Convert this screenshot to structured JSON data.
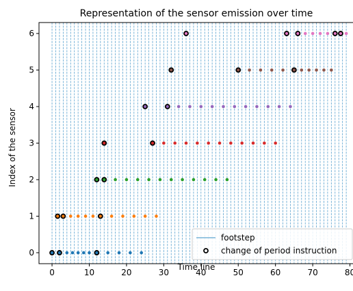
{
  "chart_data": {
    "type": "scatter",
    "title": "Representation of the sensor emission over time",
    "xlabel": "Time line",
    "ylabel": "Index of the sensor",
    "xlim": [
      -3.5,
      81
    ],
    "ylim": [
      -0.3,
      6.3
    ],
    "xticks": [
      0,
      10,
      20,
      30,
      40,
      50,
      60,
      70,
      80
    ],
    "yticks": [
      0,
      1,
      2,
      3,
      4,
      5,
      6
    ],
    "grid": false,
    "legend_position": "lower-right",
    "footstep_x_start": 0,
    "footstep_x_end": 79,
    "footstep_step": 1,
    "footstep_color": "#5ba3cf",
    "series": [
      {
        "name": "footstep",
        "kind": "vline",
        "color": "#5ba3cf"
      },
      {
        "name": "change of period instruction",
        "kind": "marker",
        "color": "#000000"
      }
    ],
    "emissions": [
      {
        "sensor": 0,
        "color": "#1f77b4",
        "x": [
          0,
          2,
          4,
          5.5,
          7,
          8.5,
          10,
          12,
          15,
          18,
          21,
          24
        ]
      },
      {
        "sensor": 1,
        "color": "#ff7f0e",
        "x": [
          1.5,
          3,
          5,
          7,
          9,
          11,
          13,
          16,
          19,
          22,
          25,
          28
        ]
      },
      {
        "sensor": 2,
        "color": "#2ca02c",
        "x": [
          12,
          14,
          17,
          20,
          23,
          26,
          29,
          32,
          35,
          38,
          41,
          44,
          47
        ]
      },
      {
        "sensor": 3,
        "color": "#d62728",
        "x": [
          14,
          27,
          30,
          33,
          36,
          39,
          42,
          45,
          48,
          51,
          54,
          57,
          60
        ]
      },
      {
        "sensor": 4,
        "color": "#9467bd",
        "x": [
          25,
          31,
          34,
          37,
          40,
          43,
          46,
          49,
          52,
          55,
          58,
          61,
          64
        ]
      },
      {
        "sensor": 5,
        "color": "#8c564b",
        "x": [
          32,
          50,
          53,
          56,
          59,
          62,
          65,
          67,
          69,
          71,
          73,
          75
        ]
      },
      {
        "sensor": 6,
        "color": "#e377c2",
        "x": [
          36,
          63,
          66,
          68,
          70,
          72,
          74,
          76,
          77.5,
          79
        ]
      }
    ],
    "period_changes": [
      {
        "x": 0,
        "y": 0
      },
      {
        "x": 2,
        "y": 0
      },
      {
        "x": 12,
        "y": 0
      },
      {
        "x": 1.5,
        "y": 1
      },
      {
        "x": 3,
        "y": 1
      },
      {
        "x": 13,
        "y": 1
      },
      {
        "x": 12,
        "y": 2
      },
      {
        "x": 14,
        "y": 2
      },
      {
        "x": 14,
        "y": 3
      },
      {
        "x": 27,
        "y": 3
      },
      {
        "x": 25,
        "y": 4
      },
      {
        "x": 31,
        "y": 4
      },
      {
        "x": 32,
        "y": 5
      },
      {
        "x": 50,
        "y": 5
      },
      {
        "x": 65,
        "y": 5
      },
      {
        "x": 36,
        "y": 6
      },
      {
        "x": 63,
        "y": 6
      },
      {
        "x": 66,
        "y": 6
      },
      {
        "x": 76,
        "y": 6
      },
      {
        "x": 77.5,
        "y": 6
      }
    ]
  }
}
